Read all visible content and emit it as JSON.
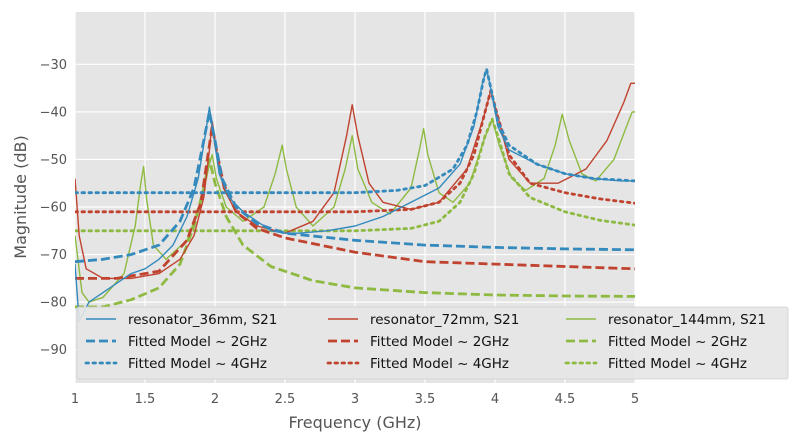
{
  "chart_data": {
    "type": "line",
    "title": "",
    "xlabel": "Frequency (GHz)",
    "ylabel": "Magnitude (dB)",
    "xlim": [
      1,
      5
    ],
    "ylim": [
      -97,
      -19
    ],
    "xticks": [
      "1",
      "1.5",
      "2",
      "2.5",
      "3",
      "3.5",
      "4",
      "4.5",
      "5"
    ],
    "yticks": [
      "−90",
      "−80",
      "−70",
      "−60",
      "−50",
      "−40",
      "−30"
    ],
    "grid": true,
    "legend_position": "lower-right",
    "legend_columns": 3,
    "colors": {
      "blue": "#348ABD",
      "red": "#C0432F",
      "green": "#8EBA42"
    },
    "series": [
      {
        "name": "resonator_36mm, S21",
        "color": "#348ABD",
        "style": "solid",
        "points": [
          [
            1.0,
            -72
          ],
          [
            1.03,
            -84
          ],
          [
            1.1,
            -80
          ],
          [
            1.2,
            -78
          ],
          [
            1.3,
            -76
          ],
          [
            1.4,
            -74
          ],
          [
            1.5,
            -73
          ],
          [
            1.6,
            -71
          ],
          [
            1.7,
            -68
          ],
          [
            1.8,
            -62
          ],
          [
            1.88,
            -54
          ],
          [
            1.93,
            -45
          ],
          [
            1.96,
            -39
          ],
          [
            1.99,
            -45
          ],
          [
            2.03,
            -53
          ],
          [
            2.1,
            -58
          ],
          [
            2.2,
            -61
          ],
          [
            2.3,
            -63
          ],
          [
            2.4,
            -65
          ],
          [
            2.5,
            -65.5
          ],
          [
            2.6,
            -65.5
          ],
          [
            2.8,
            -65
          ],
          [
            3.0,
            -64
          ],
          [
            3.2,
            -62
          ],
          [
            3.4,
            -59
          ],
          [
            3.6,
            -56
          ],
          [
            3.75,
            -51
          ],
          [
            3.85,
            -43
          ],
          [
            3.91,
            -34
          ],
          [
            3.94,
            -31
          ],
          [
            3.97,
            -35
          ],
          [
            4.02,
            -43
          ],
          [
            4.1,
            -48
          ],
          [
            4.3,
            -51
          ],
          [
            4.5,
            -53
          ],
          [
            4.7,
            -54
          ],
          [
            4.9,
            -54.5
          ],
          [
            5.0,
            -54.5
          ]
        ]
      },
      {
        "name": "Fitted Model ~ 2GHz",
        "color": "#348ABD",
        "style": "dashed",
        "points": [
          [
            1.0,
            -71.5
          ],
          [
            1.2,
            -71
          ],
          [
            1.4,
            -70
          ],
          [
            1.6,
            -68
          ],
          [
            1.75,
            -63
          ],
          [
            1.85,
            -56
          ],
          [
            1.92,
            -46
          ],
          [
            1.96,
            -40
          ],
          [
            2.0,
            -46
          ],
          [
            2.05,
            -54
          ],
          [
            2.15,
            -60
          ],
          [
            2.3,
            -63.5
          ],
          [
            2.5,
            -65.5
          ],
          [
            3.0,
            -67
          ],
          [
            3.5,
            -68
          ],
          [
            4.0,
            -68.5
          ],
          [
            4.5,
            -68.8
          ],
          [
            5.0,
            -69
          ]
        ]
      },
      {
        "name": "Fitted Model ~ 4GHz",
        "color": "#348ABD",
        "style": "dotted",
        "points": [
          [
            1.0,
            -57
          ],
          [
            1.5,
            -57
          ],
          [
            2.0,
            -57
          ],
          [
            2.5,
            -57
          ],
          [
            3.0,
            -57
          ],
          [
            3.3,
            -56.5
          ],
          [
            3.5,
            -55.5
          ],
          [
            3.7,
            -52
          ],
          [
            3.8,
            -47
          ],
          [
            3.87,
            -40
          ],
          [
            3.92,
            -33
          ],
          [
            3.94,
            -31
          ],
          [
            3.97,
            -35
          ],
          [
            4.02,
            -42
          ],
          [
            4.1,
            -47
          ],
          [
            4.3,
            -51
          ],
          [
            4.5,
            -53
          ],
          [
            4.7,
            -54
          ],
          [
            5.0,
            -54.5
          ]
        ]
      },
      {
        "name": "resonator_72mm, S21",
        "color": "#C0432F",
        "style": "solid",
        "points": [
          [
            1.0,
            -54
          ],
          [
            1.03,
            -66
          ],
          [
            1.08,
            -73
          ],
          [
            1.2,
            -75
          ],
          [
            1.4,
            -75
          ],
          [
            1.6,
            -74
          ],
          [
            1.75,
            -71
          ],
          [
            1.85,
            -66
          ],
          [
            1.92,
            -58
          ],
          [
            1.96,
            -48
          ],
          [
            1.98,
            -42
          ],
          [
            2.01,
            -48
          ],
          [
            2.06,
            -56
          ],
          [
            2.15,
            -61
          ],
          [
            2.3,
            -64
          ],
          [
            2.5,
            -65.5
          ],
          [
            2.7,
            -63
          ],
          [
            2.85,
            -57
          ],
          [
            2.94,
            -45
          ],
          [
            2.98,
            -38.5
          ],
          [
            3.02,
            -45
          ],
          [
            3.1,
            -55
          ],
          [
            3.2,
            -59
          ],
          [
            3.4,
            -60.5
          ],
          [
            3.6,
            -59
          ],
          [
            3.8,
            -52
          ],
          [
            3.92,
            -41
          ],
          [
            3.97,
            -35.5
          ],
          [
            4.02,
            -41
          ],
          [
            4.1,
            -50
          ],
          [
            4.25,
            -55
          ],
          [
            4.45,
            -55
          ],
          [
            4.65,
            -52
          ],
          [
            4.8,
            -46
          ],
          [
            4.92,
            -38
          ],
          [
            4.97,
            -34
          ],
          [
            5.0,
            -34
          ]
        ]
      },
      {
        "name": "Fitted Model ~ 2GHz",
        "color": "#C0432F",
        "style": "dashed",
        "points": [
          [
            1.0,
            -75
          ],
          [
            1.3,
            -75
          ],
          [
            1.6,
            -73.5
          ],
          [
            1.8,
            -67
          ],
          [
            1.9,
            -59
          ],
          [
            1.95,
            -49
          ],
          [
            1.98,
            -43
          ],
          [
            2.01,
            -48
          ],
          [
            2.06,
            -55
          ],
          [
            2.15,
            -61
          ],
          [
            2.3,
            -64.5
          ],
          [
            2.5,
            -66.5
          ],
          [
            3.0,
            -69.5
          ],
          [
            3.5,
            -71.5
          ],
          [
            4.0,
            -72
          ],
          [
            4.5,
            -72.5
          ],
          [
            5.0,
            -73
          ]
        ]
      },
      {
        "name": "Fitted Model ~ 4GHz",
        "color": "#C0432F",
        "style": "dotted",
        "points": [
          [
            1.0,
            -61
          ],
          [
            1.5,
            -61
          ],
          [
            2.0,
            -61
          ],
          [
            2.5,
            -61
          ],
          [
            3.0,
            -61
          ],
          [
            3.4,
            -60.5
          ],
          [
            3.6,
            -59
          ],
          [
            3.75,
            -55
          ],
          [
            3.85,
            -49
          ],
          [
            3.92,
            -41
          ],
          [
            3.97,
            -35.5
          ],
          [
            4.02,
            -41
          ],
          [
            4.1,
            -49
          ],
          [
            4.25,
            -55
          ],
          [
            4.5,
            -57
          ],
          [
            4.75,
            -58.3
          ],
          [
            5.0,
            -59.2
          ]
        ]
      },
      {
        "name": "resonator_144mm, S21",
        "color": "#8EBA42",
        "style": "solid",
        "points": [
          [
            1.0,
            -66
          ],
          [
            1.05,
            -78
          ],
          [
            1.1,
            -80
          ],
          [
            1.2,
            -79
          ],
          [
            1.35,
            -74
          ],
          [
            1.43,
            -64
          ],
          [
            1.47,
            -55
          ],
          [
            1.49,
            -51.5
          ],
          [
            1.51,
            -58
          ],
          [
            1.56,
            -68
          ],
          [
            1.65,
            -71
          ],
          [
            1.8,
            -67
          ],
          [
            1.9,
            -59
          ],
          [
            1.96,
            -51
          ],
          [
            1.98,
            -49
          ],
          [
            2.01,
            -54
          ],
          [
            2.08,
            -60
          ],
          [
            2.2,
            -63
          ],
          [
            2.35,
            -60
          ],
          [
            2.43,
            -53
          ],
          [
            2.48,
            -47
          ],
          [
            2.51,
            -52
          ],
          [
            2.58,
            -60
          ],
          [
            2.7,
            -64
          ],
          [
            2.85,
            -60
          ],
          [
            2.93,
            -52
          ],
          [
            2.98,
            -45
          ],
          [
            3.02,
            -52
          ],
          [
            3.12,
            -59
          ],
          [
            3.25,
            -61.5
          ],
          [
            3.4,
            -56
          ],
          [
            3.46,
            -48
          ],
          [
            3.49,
            -43.5
          ],
          [
            3.52,
            -49
          ],
          [
            3.6,
            -57
          ],
          [
            3.7,
            -59
          ],
          [
            3.82,
            -55
          ],
          [
            3.92,
            -46
          ],
          [
            3.98,
            -41.5
          ],
          [
            4.03,
            -47
          ],
          [
            4.12,
            -54
          ],
          [
            4.22,
            -56.5
          ],
          [
            4.35,
            -54
          ],
          [
            4.43,
            -47
          ],
          [
            4.48,
            -40.5
          ],
          [
            4.53,
            -46
          ],
          [
            4.62,
            -53
          ],
          [
            4.72,
            -54.5
          ],
          [
            4.85,
            -50
          ],
          [
            4.94,
            -43
          ],
          [
            4.98,
            -40
          ],
          [
            5.0,
            -40
          ]
        ]
      },
      {
        "name": "Fitted Model ~ 2GHz",
        "color": "#8EBA42",
        "style": "dashed",
        "points": [
          [
            1.0,
            -81
          ],
          [
            1.2,
            -81
          ],
          [
            1.4,
            -79.5
          ],
          [
            1.6,
            -77
          ],
          [
            1.75,
            -72
          ],
          [
            1.85,
            -64
          ],
          [
            1.92,
            -56
          ],
          [
            1.96,
            -50
          ],
          [
            2.0,
            -55
          ],
          [
            2.08,
            -62
          ],
          [
            2.2,
            -68
          ],
          [
            2.4,
            -72.5
          ],
          [
            2.7,
            -75.5
          ],
          [
            3.0,
            -77
          ],
          [
            3.5,
            -78
          ],
          [
            4.0,
            -78.5
          ],
          [
            4.5,
            -78.7
          ],
          [
            5.0,
            -78.8
          ]
        ]
      },
      {
        "name": "Fitted Model ~ 4GHz",
        "color": "#8EBA42",
        "style": "dotted",
        "points": [
          [
            1.0,
            -65
          ],
          [
            1.5,
            -65
          ],
          [
            2.0,
            -65
          ],
          [
            2.5,
            -65
          ],
          [
            3.0,
            -65
          ],
          [
            3.4,
            -64.5
          ],
          [
            3.6,
            -63
          ],
          [
            3.75,
            -59
          ],
          [
            3.85,
            -53
          ],
          [
            3.93,
            -45
          ],
          [
            3.98,
            -41.5
          ],
          [
            4.03,
            -46
          ],
          [
            4.1,
            -53
          ],
          [
            4.25,
            -58
          ],
          [
            4.5,
            -61
          ],
          [
            4.75,
            -62.8
          ],
          [
            5.0,
            -63.8
          ]
        ]
      }
    ]
  }
}
